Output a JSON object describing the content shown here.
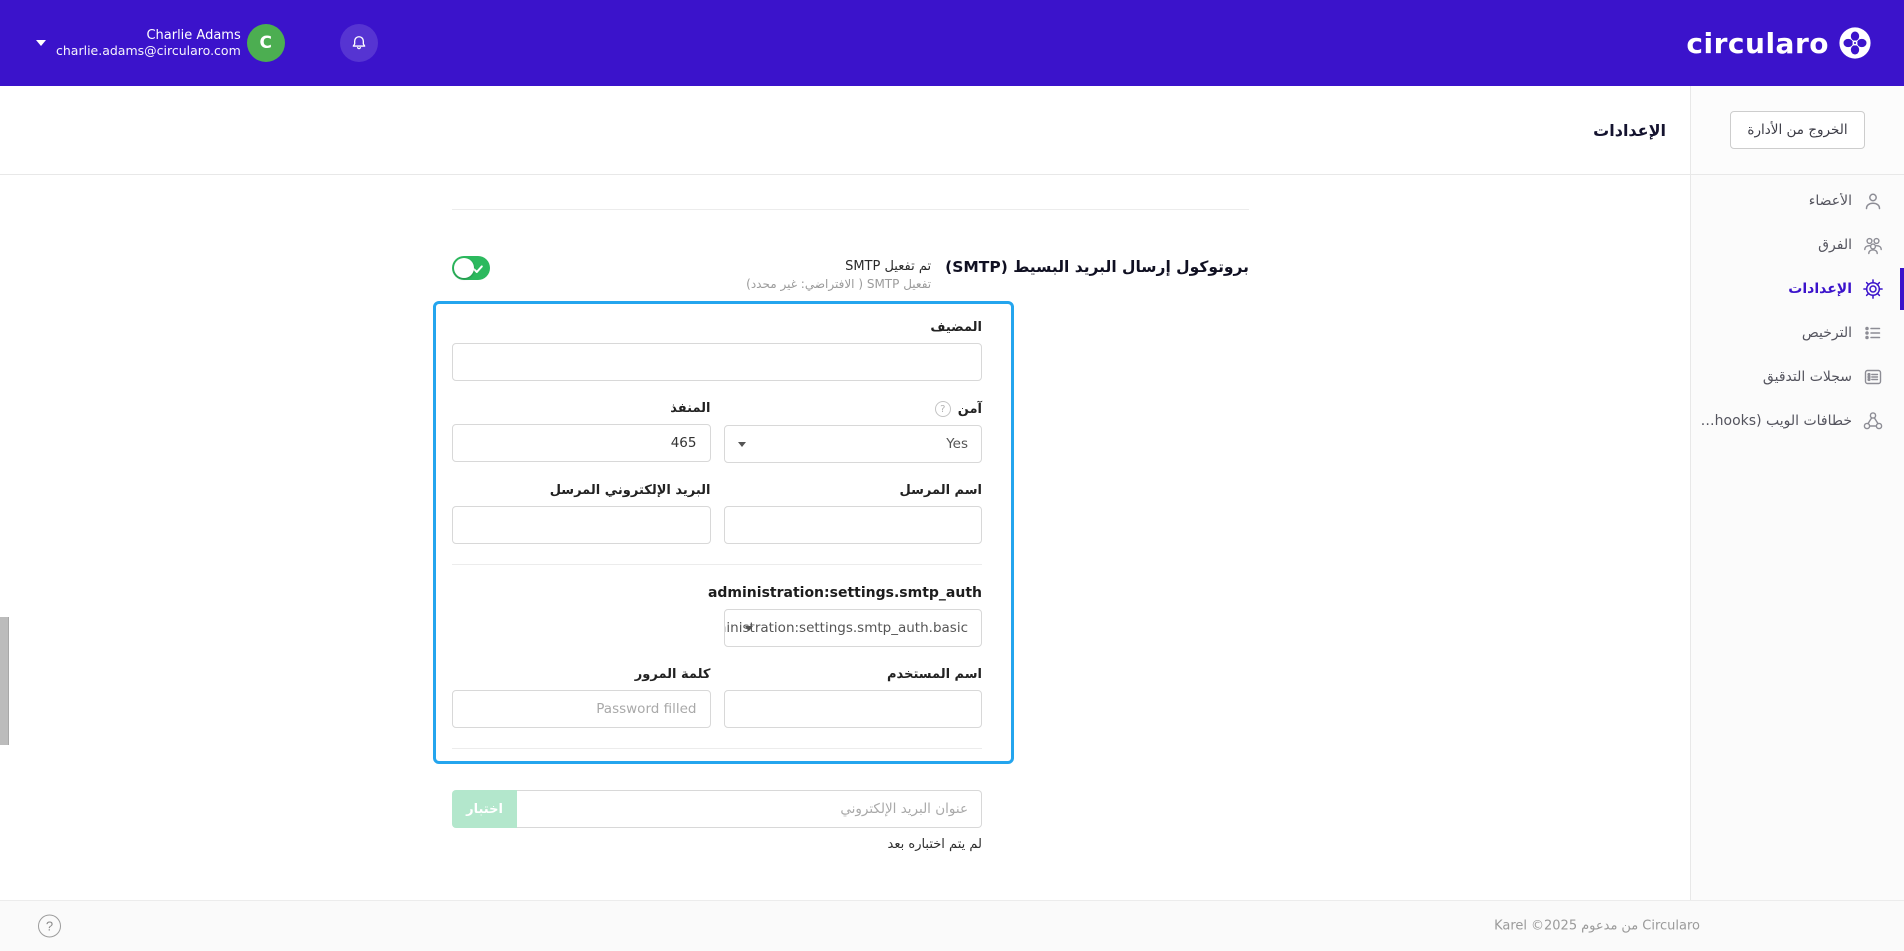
{
  "topbar": {
    "brand": "circularo",
    "user": {
      "name": "Charlie Adams",
      "email": "charlie.adams@circularo.com",
      "initial": "C"
    },
    "colors": {
      "bar": "#3b13cb",
      "avatar": "#4cae51"
    }
  },
  "header": {
    "title": "الإعدادات",
    "exit_button": "الخروج من الأدارة"
  },
  "sidebar": {
    "items": [
      {
        "label": "الأعضاء",
        "icon": "user-icon",
        "active": false
      },
      {
        "label": "الفرق",
        "icon": "users-icon",
        "active": false
      },
      {
        "label": "الإعدادات",
        "icon": "gear-icon",
        "active": true
      },
      {
        "label": "الترخيص",
        "icon": "list-icon",
        "active": false
      },
      {
        "label": "سجلات التدقيق",
        "icon": "audit-log-icon",
        "active": false
      },
      {
        "label": "خطافات الويب (Webhooks)",
        "icon": "webhook-icon",
        "active": false
      }
    ]
  },
  "smtp": {
    "title": "بروتوكول إرسال البريد البسيط (SMTP)",
    "enabled_label": "تم تفعيل SMTP",
    "subtitle": "تفعيل SMTP ( الافتراضي: غير محدد)",
    "toggle_on": true,
    "fields": {
      "host_label": "المضيف",
      "host_value": "",
      "secure_label": "آمن",
      "secure_help": "?",
      "secure_value": "Yes",
      "port_label": "المنفذ",
      "port_value": "465",
      "sender_name_label": "اسم المرسل",
      "sender_name_value": "",
      "sender_email_label": "البريد الإلكتروني المرسل",
      "sender_email_value": "",
      "auth_label": "administration:settings.smtp_auth",
      "auth_value": "administration:settings.smtp_auth.basic",
      "username_label": "اسم المستخدم",
      "username_value": "",
      "password_label": "كلمة المرور",
      "password_placeholder": "Password filled"
    },
    "test": {
      "button": "اختبار",
      "email_placeholder": "عنوان البريد الإلكتروني",
      "status": "لم يتم اختباره بعد"
    },
    "colors": {
      "selection_border": "#24a5ee",
      "toggle_on": "#2cb95e",
      "test_button": "#b3e7cc"
    }
  },
  "footer": {
    "text": "Karel ©2025 مدعوم من Circularo",
    "help_icon": "?"
  }
}
